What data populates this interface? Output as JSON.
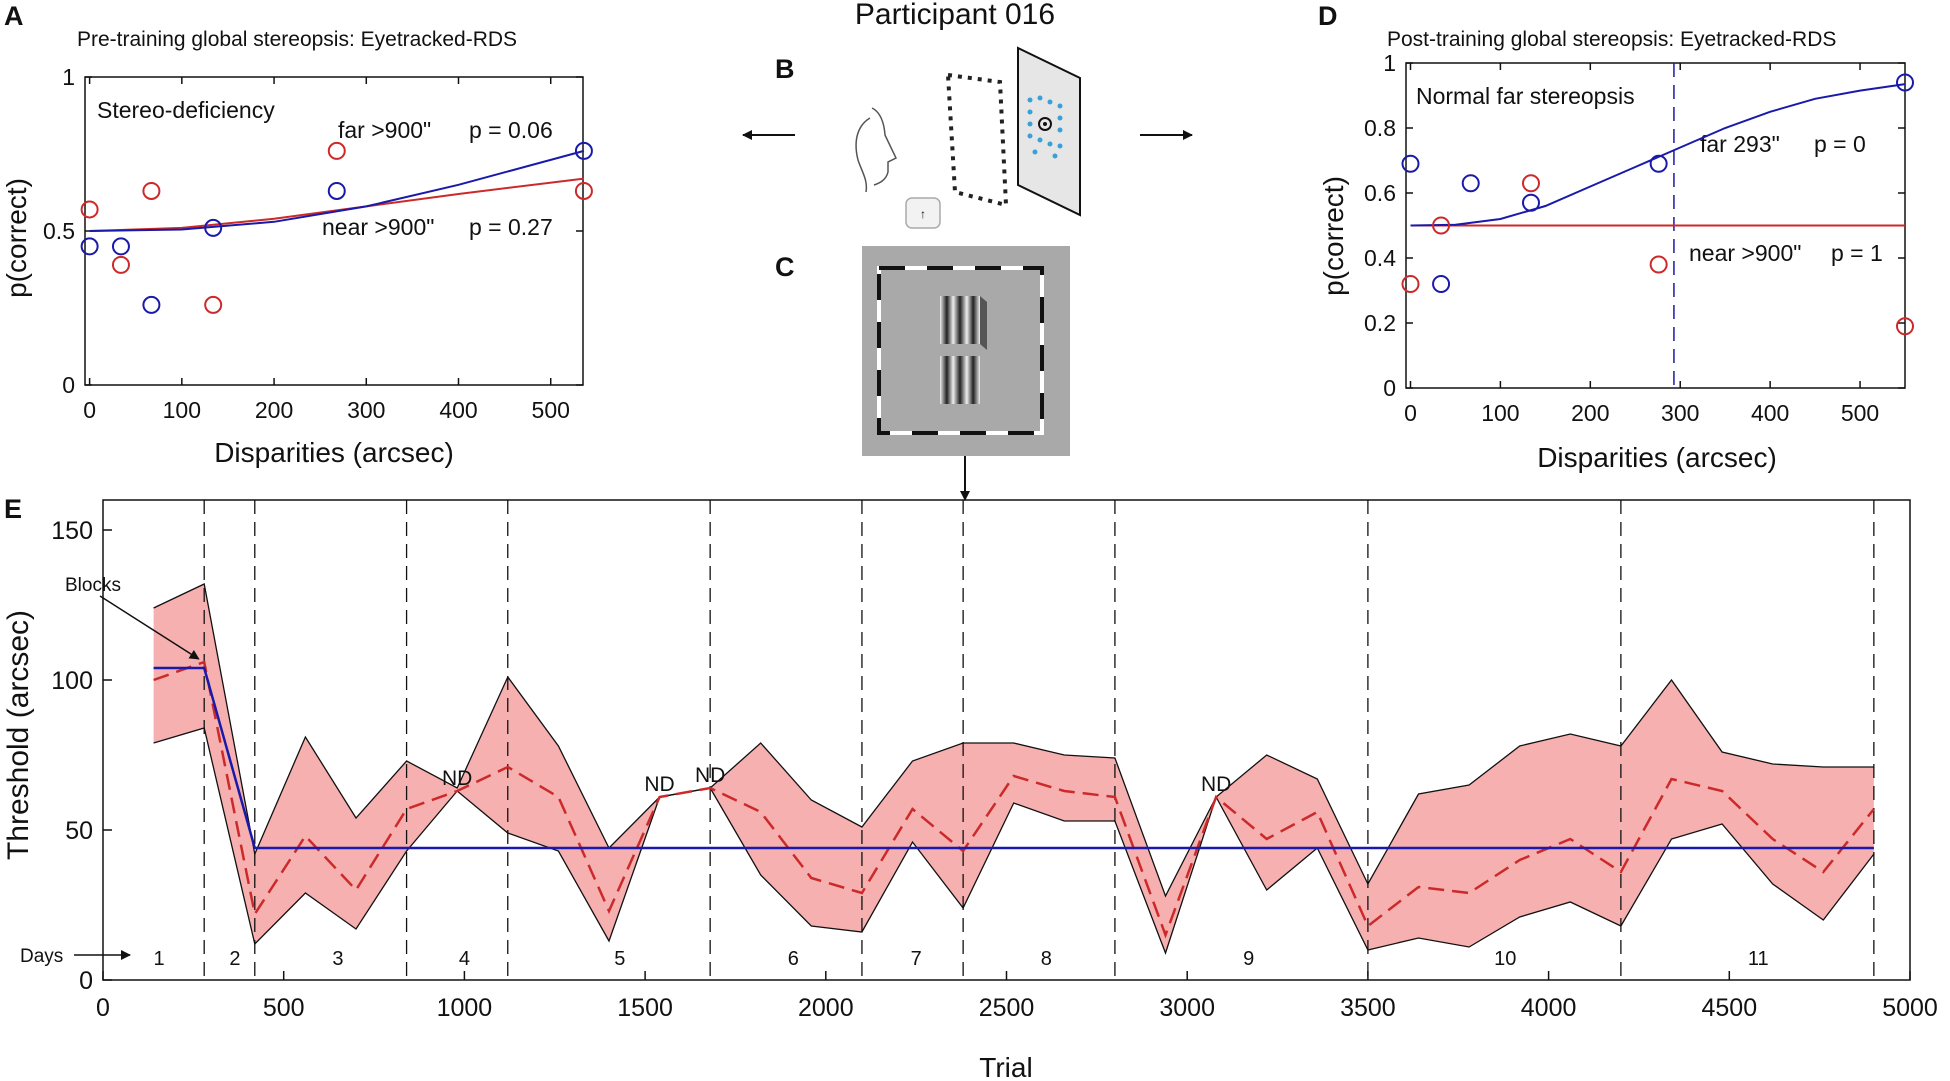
{
  "figure": {
    "participant": "Participant 016",
    "panel_labels": {
      "A": "A",
      "B": "B",
      "C": "C",
      "D": "D",
      "E": "E"
    }
  },
  "colors": {
    "far": "#1a1aaa",
    "near": "#cc2a2a",
    "band": "#f7b0b0",
    "axis": "#111111"
  },
  "chart_data": [
    {
      "id": "A",
      "type": "scatter",
      "title": "Pre-training global stereopsis: Eyetracked-RDS",
      "xlabel": "Disparities (arcsec)",
      "ylabel": "p(correct)",
      "xlim": [
        -5,
        535
      ],
      "ylim": [
        0,
        1
      ],
      "xticks": [
        0,
        100,
        200,
        300,
        400,
        500
      ],
      "yticks": [
        0,
        0.5,
        1
      ],
      "ytick_labels": [
        "0",
        "0.5",
        "1"
      ],
      "annotation": "Stereo-deficiency",
      "series": [
        {
          "name": "far",
          "color": "#1a1aaa",
          "points": [
            [
              0,
              0.45
            ],
            [
              34,
              0.45
            ],
            [
              67,
              0.26
            ],
            [
              134,
              0.51
            ],
            [
              268,
              0.63
            ],
            [
              536,
              0.76
            ]
          ],
          "fit": [
            [
              0,
              0.5
            ],
            [
              100,
              0.505
            ],
            [
              200,
              0.53
            ],
            [
              300,
              0.58
            ],
            [
              400,
              0.65
            ],
            [
              536,
              0.76
            ]
          ],
          "label_name": "far >900\"",
          "label_p": "p = 0.06"
        },
        {
          "name": "near",
          "color": "#cc2a2a",
          "points": [
            [
              0,
              0.57
            ],
            [
              34,
              0.39
            ],
            [
              67,
              0.63
            ],
            [
              134,
              0.26
            ],
            [
              268,
              0.76
            ],
            [
              536,
              0.63
            ]
          ],
          "fit": [
            [
              0,
              0.5
            ],
            [
              100,
              0.51
            ],
            [
              200,
              0.54
            ],
            [
              300,
              0.58
            ],
            [
              400,
              0.62
            ],
            [
              536,
              0.67
            ]
          ],
          "label_name": "near >900\"",
          "label_p": "p = 0.27"
        }
      ]
    },
    {
      "id": "D",
      "type": "scatter",
      "title": "Post-training global stereopsis: Eyetracked-RDS",
      "xlabel": "Disparities (arcsec)",
      "ylabel": "p(correct)",
      "xlim": [
        -5,
        550
      ],
      "ylim": [
        0,
        1
      ],
      "xticks": [
        0,
        100,
        200,
        300,
        400,
        500
      ],
      "yticks": [
        0,
        0.2,
        0.4,
        0.6,
        0.8,
        1
      ],
      "ytick_labels": [
        "0",
        "0.2",
        "0.4",
        "0.6",
        "0.8",
        "1"
      ],
      "annotation": "Normal far stereopsis",
      "threshold_line": 293,
      "series": [
        {
          "name": "far",
          "color": "#1a1aaa",
          "points": [
            [
              0,
              0.69
            ],
            [
              34,
              0.32
            ],
            [
              67,
              0.63
            ],
            [
              134,
              0.57
            ],
            [
              276,
              0.69
            ],
            [
              550,
              0.94
            ]
          ],
          "fit": [
            [
              0,
              0.5
            ],
            [
              50,
              0.502
            ],
            [
              100,
              0.52
            ],
            [
              150,
              0.56
            ],
            [
              200,
              0.62
            ],
            [
              250,
              0.68
            ],
            [
              300,
              0.74
            ],
            [
              350,
              0.8
            ],
            [
              400,
              0.85
            ],
            [
              450,
              0.89
            ],
            [
              500,
              0.915
            ],
            [
              550,
              0.935
            ]
          ],
          "label_name": "far 293\"",
          "label_p": "p = 0"
        },
        {
          "name": "near",
          "color": "#cc2a2a",
          "points": [
            [
              0,
              0.32
            ],
            [
              34,
              0.5
            ],
            [
              134,
              0.63
            ],
            [
              276,
              0.38
            ],
            [
              550,
              0.19
            ]
          ],
          "fit": [
            [
              0,
              0.5
            ],
            [
              550,
              0.5
            ]
          ],
          "label_name": "near >900\"",
          "label_p": "p = 1"
        }
      ]
    },
    {
      "id": "E",
      "type": "line",
      "xlabel": "Trial",
      "ylabel": "Threshold (arcsec)",
      "xlim": [
        0,
        5000
      ],
      "ylim": [
        0,
        160
      ],
      "xticks": [
        0,
        500,
        1000,
        1500,
        2000,
        2500,
        3000,
        3500,
        4000,
        4500,
        5000
      ],
      "yticks": [
        0,
        50,
        100,
        150
      ],
      "mean": [
        [
          140,
          100
        ],
        [
          280,
          106
        ],
        [
          420,
          22
        ],
        [
          560,
          48
        ],
        [
          700,
          30
        ],
        [
          840,
          57
        ],
        [
          980,
          63
        ],
        [
          1120,
          71
        ],
        [
          1260,
          61
        ],
        [
          1400,
          23
        ],
        [
          1540,
          61
        ],
        [
          1680,
          64
        ],
        [
          1820,
          56
        ],
        [
          1960,
          34
        ],
        [
          2100,
          29
        ],
        [
          2240,
          57
        ],
        [
          2380,
          43
        ],
        [
          2520,
          68
        ],
        [
          2660,
          63
        ],
        [
          2800,
          61
        ],
        [
          2940,
          15
        ],
        [
          3080,
          61
        ],
        [
          3220,
          47
        ],
        [
          3360,
          56
        ],
        [
          3500,
          18
        ],
        [
          3640,
          31
        ],
        [
          3780,
          29
        ],
        [
          3920,
          40
        ],
        [
          4060,
          47
        ],
        [
          4200,
          36
        ],
        [
          4340,
          67
        ],
        [
          4480,
          63
        ],
        [
          4620,
          47
        ],
        [
          4760,
          36
        ],
        [
          4900,
          57
        ]
      ],
      "upper": [
        [
          140,
          124
        ],
        [
          280,
          132
        ],
        [
          420,
          42
        ],
        [
          560,
          81
        ],
        [
          700,
          54
        ],
        [
          840,
          73
        ],
        [
          980,
          64
        ],
        [
          1120,
          101
        ],
        [
          1260,
          78
        ],
        [
          1400,
          44
        ],
        [
          1540,
          61
        ],
        [
          1680,
          64
        ],
        [
          1820,
          79
        ],
        [
          1960,
          60
        ],
        [
          2100,
          51
        ],
        [
          2240,
          73
        ],
        [
          2380,
          79
        ],
        [
          2520,
          79
        ],
        [
          2660,
          75
        ],
        [
          2800,
          74
        ],
        [
          2940,
          28
        ],
        [
          3080,
          61
        ],
        [
          3220,
          75
        ],
        [
          3360,
          67
        ],
        [
          3500,
          32
        ],
        [
          3640,
          62
        ],
        [
          3780,
          65
        ],
        [
          3920,
          78
        ],
        [
          4060,
          82
        ],
        [
          4200,
          78
        ],
        [
          4340,
          100
        ],
        [
          4480,
          76
        ],
        [
          4620,
          72
        ],
        [
          4760,
          71
        ],
        [
          4900,
          71
        ]
      ],
      "lower": [
        [
          140,
          79
        ],
        [
          280,
          84
        ],
        [
          420,
          12
        ],
        [
          560,
          29
        ],
        [
          700,
          17
        ],
        [
          840,
          43
        ],
        [
          980,
          63
        ],
        [
          1120,
          49
        ],
        [
          1260,
          43
        ],
        [
          1400,
          13
        ],
        [
          1540,
          61
        ],
        [
          1680,
          64
        ],
        [
          1820,
          35
        ],
        [
          1960,
          18
        ],
        [
          2100,
          16
        ],
        [
          2240,
          46
        ],
        [
          2380,
          24
        ],
        [
          2520,
          59
        ],
        [
          2660,
          53
        ],
        [
          2800,
          53
        ],
        [
          2940,
          9
        ],
        [
          3080,
          61
        ],
        [
          3220,
          30
        ],
        [
          3360,
          44
        ],
        [
          3500,
          10
        ],
        [
          3640,
          14
        ],
        [
          3780,
          11
        ],
        [
          3920,
          21
        ],
        [
          4060,
          26
        ],
        [
          4200,
          18
        ],
        [
          4340,
          47
        ],
        [
          4480,
          52
        ],
        [
          4620,
          32
        ],
        [
          4760,
          20
        ],
        [
          4900,
          42
        ]
      ],
      "fit": [
        [
          140,
          104
        ],
        [
          280,
          104
        ],
        [
          420,
          44
        ],
        [
          4900,
          44
        ]
      ],
      "day_boundaries": [
        280,
        420,
        840,
        1120,
        1680,
        2100,
        2380,
        2800,
        3500,
        4200,
        4900
      ],
      "days": [
        {
          "label": "1",
          "x": 155
        },
        {
          "label": "2",
          "x": 365
        },
        {
          "label": "3",
          "x": 650
        },
        {
          "label": "4",
          "x": 1000
        },
        {
          "label": "5",
          "x": 1430
        },
        {
          "label": "6",
          "x": 1910
        },
        {
          "label": "7",
          "x": 2250
        },
        {
          "label": "8",
          "x": 2610
        },
        {
          "label": "9",
          "x": 3170
        },
        {
          "label": "10",
          "x": 3880
        },
        {
          "label": "11",
          "x": 4580
        }
      ],
      "nd_labels": [
        {
          "text": "ND",
          "x": 980,
          "y": 65
        },
        {
          "text": "ND",
          "x": 1540,
          "y": 63
        },
        {
          "text": "ND",
          "x": 1680,
          "y": 66
        },
        {
          "text": "ND",
          "x": 3080,
          "y": 63
        }
      ],
      "blocks_label": "Blocks",
      "days_label": "Days"
    }
  ]
}
